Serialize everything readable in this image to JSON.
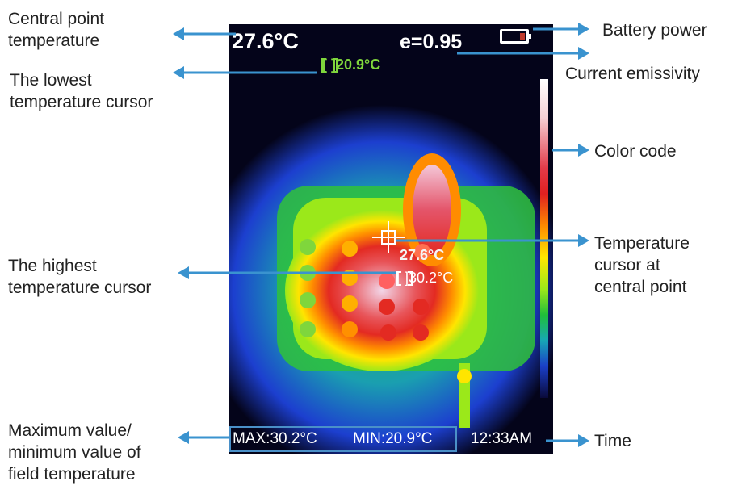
{
  "labels": {
    "central_point_temperature": "Central point\ntemperature",
    "lowest_temperature_cursor": "The lowest\ntemperature cursor",
    "highest_temperature_cursor": "The highest\ntemperature cursor",
    "max_min_field_temperature": "Maximum value/\nminimum value of\nfield temperature",
    "battery_power": "Battery power",
    "current_emissivity": "Current emissivity",
    "color_code": "Color code",
    "temperature_cursor_central": "Temperature\ncursor at\ncentral point",
    "time": "Time"
  },
  "screen": {
    "central_temperature": "27.6°C",
    "emissivity": "e=0.95",
    "lowest_cursor": "[ ]20.9°C",
    "center_cursor_value": "27.6°C",
    "highest_cursor": "[ ]30.2°C",
    "max": "MAX:30.2°C",
    "min": "MIN:20.9°C",
    "time": "12:33AM"
  },
  "colors": {
    "arrow": "#3a93cf",
    "lowest_cursor": "#7fd63c",
    "status_box": "#4a90c8"
  }
}
